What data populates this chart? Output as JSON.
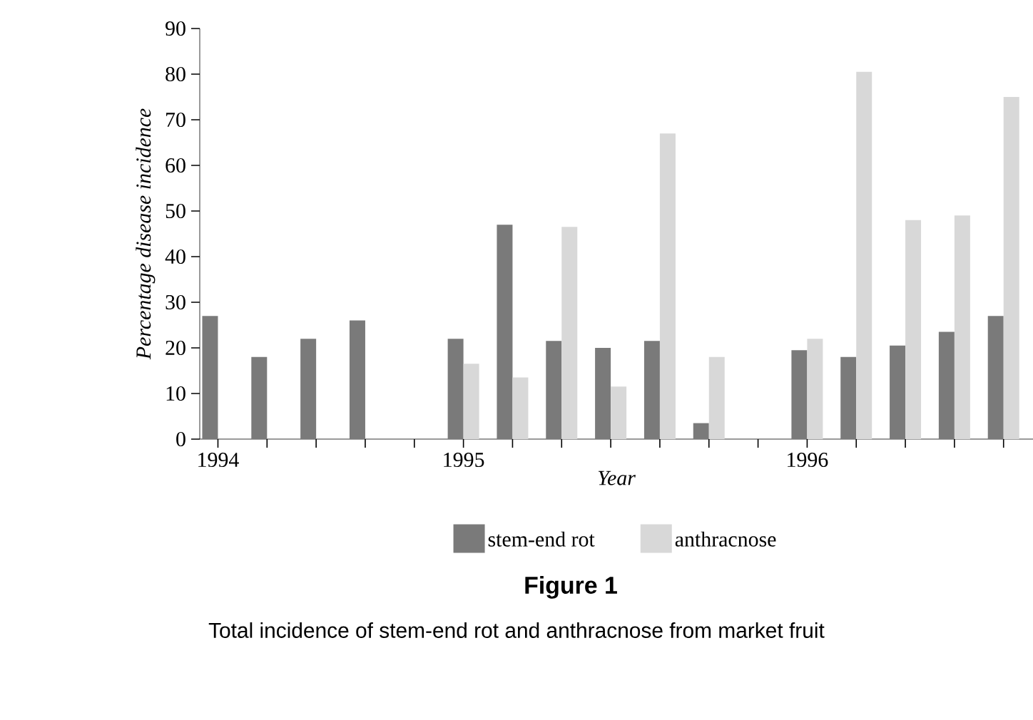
{
  "chart_data": {
    "type": "bar",
    "title": "Figure 1",
    "xlabel": "Year",
    "ylabel": "Percentage disease incidence",
    "categories": [
      "1994",
      null,
      null,
      null,
      null,
      "1995",
      null,
      null,
      null,
      null,
      null,
      null,
      "1996",
      null,
      null,
      null,
      null
    ],
    "series": [
      {
        "name": "stem-end rot",
        "color": "#7a7a7a",
        "values": [
          27,
          18,
          22,
          26,
          null,
          22,
          47,
          21.5,
          20,
          21.5,
          3.5,
          null,
          19.5,
          18,
          20.5,
          23.5,
          27
        ]
      },
      {
        "name": "anthracnose",
        "color": "#d8d8d8",
        "values": [
          null,
          null,
          null,
          null,
          null,
          16.5,
          13.5,
          46.5,
          11.5,
          67,
          18,
          null,
          22,
          80.5,
          48,
          49,
          75
        ]
      }
    ],
    "ylim": [
      0,
      90
    ],
    "yticks": [
      0,
      10,
      20,
      30,
      40,
      50,
      60,
      70,
      80,
      90
    ],
    "legend": "bottom",
    "grid": false,
    "annotations": [
      "Total incidence of stem-end rot and anthracnose from market fruit"
    ]
  }
}
